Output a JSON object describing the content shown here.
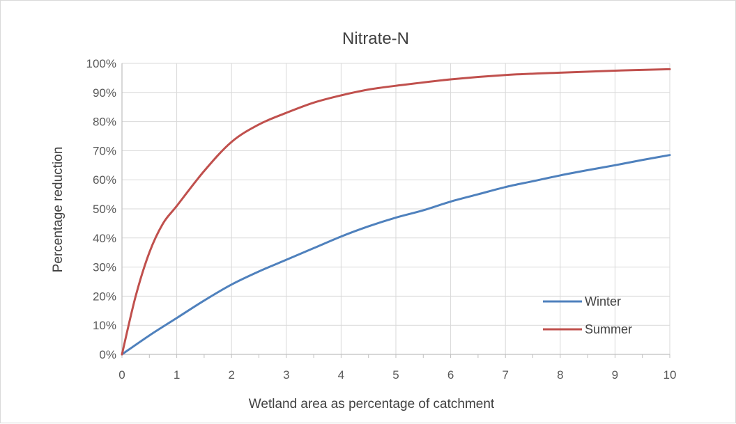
{
  "chart_data": {
    "type": "line",
    "title": "Nitrate-N",
    "xlabel": "Wetland area as percentage of catchment",
    "ylabel": "Percentage reduction",
    "xlim": [
      0,
      10
    ],
    "ylim": [
      0,
      100
    ],
    "x_ticks": [
      "0",
      "1",
      "2",
      "3",
      "4",
      "5",
      "6",
      "7",
      "8",
      "9",
      "10"
    ],
    "y_ticks": [
      "0%",
      "10%",
      "20%",
      "30%",
      "40%",
      "50%",
      "60%",
      "70%",
      "80%",
      "90%",
      "100%"
    ],
    "grid": "on",
    "legend_position": "bottom-right",
    "series": [
      {
        "name": "Winter",
        "color": "#4f81bd",
        "x": [
          0,
          0.5,
          1,
          1.5,
          2,
          2.5,
          3,
          3.5,
          4,
          4.5,
          5,
          5.5,
          6,
          6.5,
          7,
          7.5,
          8,
          8.5,
          9,
          9.5,
          10
        ],
        "y": [
          0,
          6.5,
          12.5,
          18.5,
          24,
          28.5,
          32.5,
          36.5,
          40.5,
          44,
          47,
          49.5,
          52.5,
          55,
          57.5,
          59.5,
          61.5,
          63.3,
          65,
          66.8,
          68.5
        ]
      },
      {
        "name": "Summer",
        "color": "#c0504d",
        "x": [
          0,
          0.25,
          0.5,
          0.75,
          1,
          1.5,
          2,
          2.5,
          3,
          3.5,
          4,
          4.5,
          5,
          6,
          7,
          8,
          9,
          10
        ],
        "y": [
          0,
          20,
          35,
          45,
          51,
          63,
          73,
          79,
          83,
          86.5,
          89,
          91,
          92.3,
          94.5,
          96,
          96.8,
          97.5,
          98
        ]
      }
    ]
  }
}
